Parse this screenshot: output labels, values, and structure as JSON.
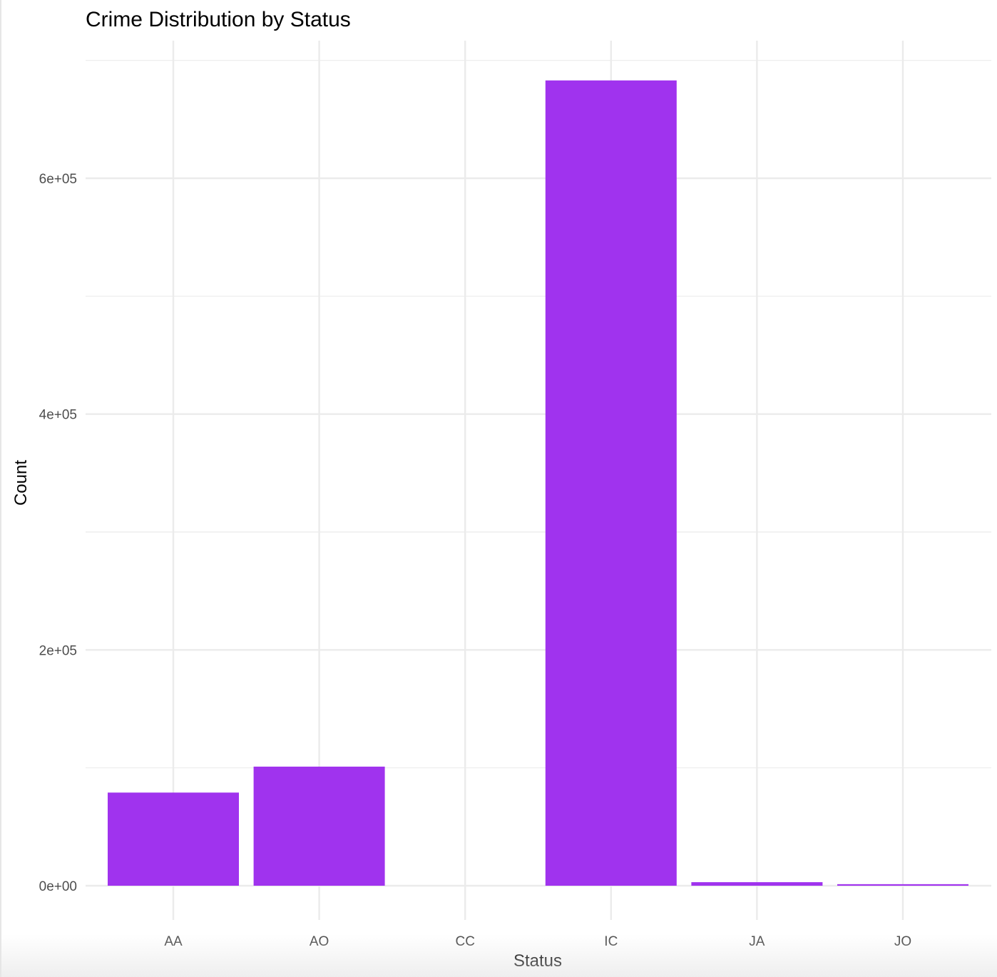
{
  "chart_data": {
    "type": "bar",
    "title": "Crime Distribution by Status",
    "xlabel": "Status",
    "ylabel": "Count",
    "categories": [
      "AA",
      "AO",
      "CC",
      "IC",
      "JA",
      "JO"
    ],
    "values": [
      79000,
      101000,
      0,
      683000,
      3000,
      1300
    ],
    "ylim": [
      0,
      700000
    ],
    "yticks": [
      0,
      200000,
      400000,
      600000
    ],
    "ytick_labels": [
      "0e+00",
      "2e+05",
      "4e+05",
      "6e+05"
    ],
    "grid": true,
    "legend": "none",
    "bar_color": "#a033ee",
    "grid_color": "#ebebeb"
  }
}
